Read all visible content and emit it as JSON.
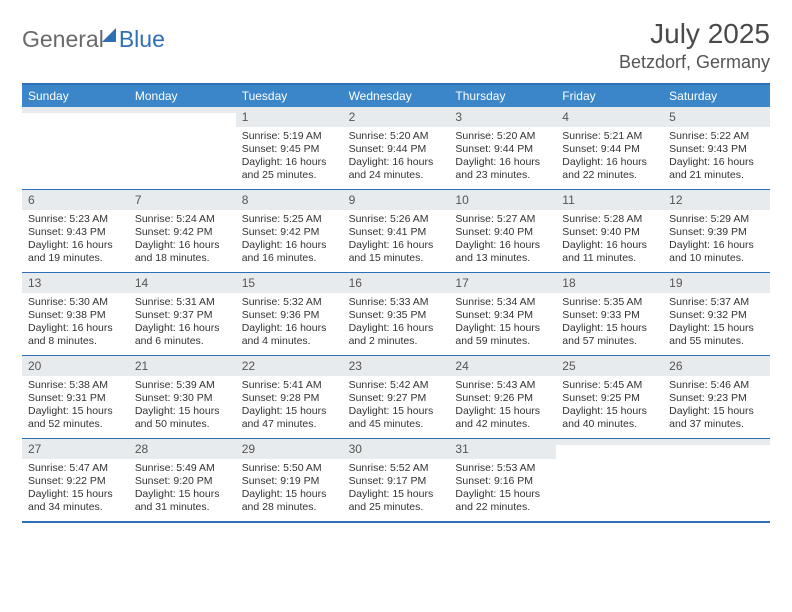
{
  "logo": {
    "text1": "General",
    "text2": "Blue"
  },
  "title": "July 2025",
  "location": "Betzdorf, Germany",
  "colors": {
    "header_bg": "#3b86c8",
    "border": "#2f6fb4",
    "daynum_bg": "#e8ebed",
    "text": "#333333",
    "title_color": "#4a4a4a"
  },
  "dow": [
    "Sunday",
    "Monday",
    "Tuesday",
    "Wednesday",
    "Thursday",
    "Friday",
    "Saturday"
  ],
  "weeks": [
    [
      {
        "blank": true
      },
      {
        "blank": true
      },
      {
        "day": "1",
        "sunrise": "5:19 AM",
        "sunset": "9:45 PM",
        "daylight": "16 hours and 25 minutes."
      },
      {
        "day": "2",
        "sunrise": "5:20 AM",
        "sunset": "9:44 PM",
        "daylight": "16 hours and 24 minutes."
      },
      {
        "day": "3",
        "sunrise": "5:20 AM",
        "sunset": "9:44 PM",
        "daylight": "16 hours and 23 minutes."
      },
      {
        "day": "4",
        "sunrise": "5:21 AM",
        "sunset": "9:44 PM",
        "daylight": "16 hours and 22 minutes."
      },
      {
        "day": "5",
        "sunrise": "5:22 AM",
        "sunset": "9:43 PM",
        "daylight": "16 hours and 21 minutes."
      }
    ],
    [
      {
        "day": "6",
        "sunrise": "5:23 AM",
        "sunset": "9:43 PM",
        "daylight": "16 hours and 19 minutes."
      },
      {
        "day": "7",
        "sunrise": "5:24 AM",
        "sunset": "9:42 PM",
        "daylight": "16 hours and 18 minutes."
      },
      {
        "day": "8",
        "sunrise": "5:25 AM",
        "sunset": "9:42 PM",
        "daylight": "16 hours and 16 minutes."
      },
      {
        "day": "9",
        "sunrise": "5:26 AM",
        "sunset": "9:41 PM",
        "daylight": "16 hours and 15 minutes."
      },
      {
        "day": "10",
        "sunrise": "5:27 AM",
        "sunset": "9:40 PM",
        "daylight": "16 hours and 13 minutes."
      },
      {
        "day": "11",
        "sunrise": "5:28 AM",
        "sunset": "9:40 PM",
        "daylight": "16 hours and 11 minutes."
      },
      {
        "day": "12",
        "sunrise": "5:29 AM",
        "sunset": "9:39 PM",
        "daylight": "16 hours and 10 minutes."
      }
    ],
    [
      {
        "day": "13",
        "sunrise": "5:30 AM",
        "sunset": "9:38 PM",
        "daylight": "16 hours and 8 minutes."
      },
      {
        "day": "14",
        "sunrise": "5:31 AM",
        "sunset": "9:37 PM",
        "daylight": "16 hours and 6 minutes."
      },
      {
        "day": "15",
        "sunrise": "5:32 AM",
        "sunset": "9:36 PM",
        "daylight": "16 hours and 4 minutes."
      },
      {
        "day": "16",
        "sunrise": "5:33 AM",
        "sunset": "9:35 PM",
        "daylight": "16 hours and 2 minutes."
      },
      {
        "day": "17",
        "sunrise": "5:34 AM",
        "sunset": "9:34 PM",
        "daylight": "15 hours and 59 minutes."
      },
      {
        "day": "18",
        "sunrise": "5:35 AM",
        "sunset": "9:33 PM",
        "daylight": "15 hours and 57 minutes."
      },
      {
        "day": "19",
        "sunrise": "5:37 AM",
        "sunset": "9:32 PM",
        "daylight": "15 hours and 55 minutes."
      }
    ],
    [
      {
        "day": "20",
        "sunrise": "5:38 AM",
        "sunset": "9:31 PM",
        "daylight": "15 hours and 52 minutes."
      },
      {
        "day": "21",
        "sunrise": "5:39 AM",
        "sunset": "9:30 PM",
        "daylight": "15 hours and 50 minutes."
      },
      {
        "day": "22",
        "sunrise": "5:41 AM",
        "sunset": "9:28 PM",
        "daylight": "15 hours and 47 minutes."
      },
      {
        "day": "23",
        "sunrise": "5:42 AM",
        "sunset": "9:27 PM",
        "daylight": "15 hours and 45 minutes."
      },
      {
        "day": "24",
        "sunrise": "5:43 AM",
        "sunset": "9:26 PM",
        "daylight": "15 hours and 42 minutes."
      },
      {
        "day": "25",
        "sunrise": "5:45 AM",
        "sunset": "9:25 PM",
        "daylight": "15 hours and 40 minutes."
      },
      {
        "day": "26",
        "sunrise": "5:46 AM",
        "sunset": "9:23 PM",
        "daylight": "15 hours and 37 minutes."
      }
    ],
    [
      {
        "day": "27",
        "sunrise": "5:47 AM",
        "sunset": "9:22 PM",
        "daylight": "15 hours and 34 minutes."
      },
      {
        "day": "28",
        "sunrise": "5:49 AM",
        "sunset": "9:20 PM",
        "daylight": "15 hours and 31 minutes."
      },
      {
        "day": "29",
        "sunrise": "5:50 AM",
        "sunset": "9:19 PM",
        "daylight": "15 hours and 28 minutes."
      },
      {
        "day": "30",
        "sunrise": "5:52 AM",
        "sunset": "9:17 PM",
        "daylight": "15 hours and 25 minutes."
      },
      {
        "day": "31",
        "sunrise": "5:53 AM",
        "sunset": "9:16 PM",
        "daylight": "15 hours and 22 minutes."
      },
      {
        "blank": true
      },
      {
        "blank": true
      }
    ]
  ],
  "labels": {
    "sunrise": "Sunrise:",
    "sunset": "Sunset:",
    "daylight": "Daylight:"
  }
}
